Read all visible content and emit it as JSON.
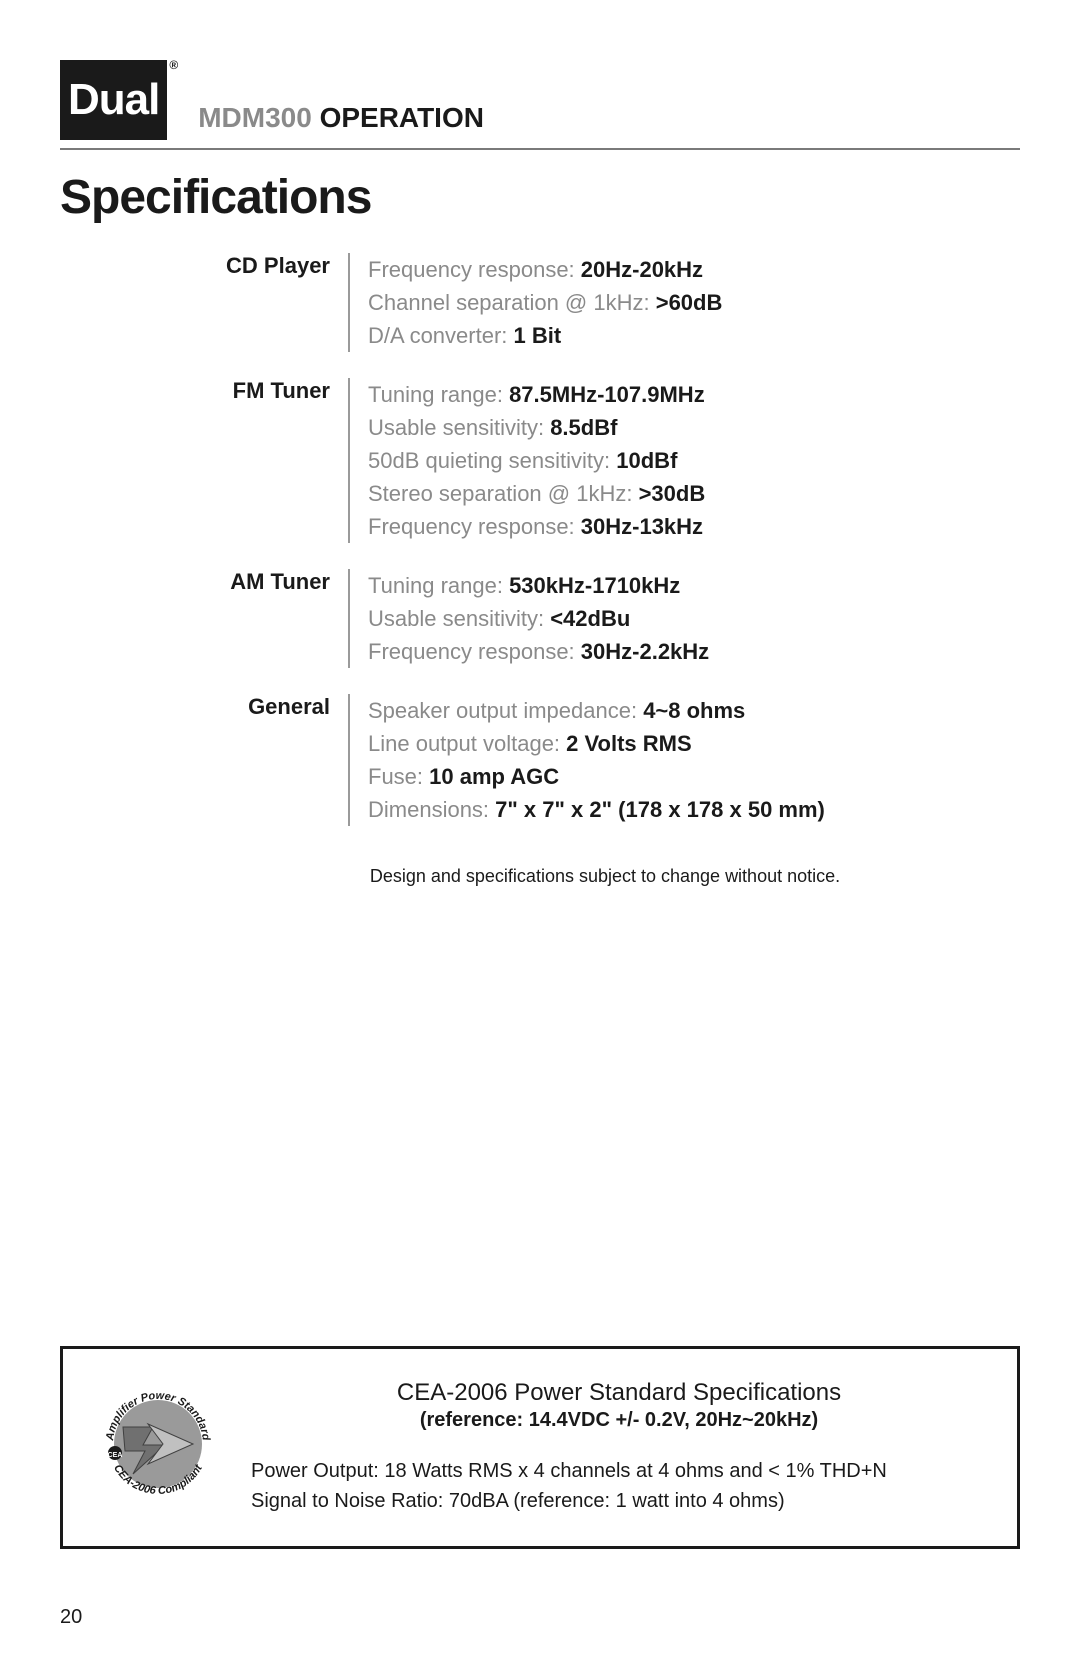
{
  "brand": {
    "logo_text": "Dual",
    "reg": "®"
  },
  "header": {
    "model": "MDM300",
    "word": "OPERATION"
  },
  "title": "Specifications",
  "sections": [
    {
      "category": "CD Player",
      "items": [
        {
          "label": "Frequency response:",
          "value": "20Hz-20kHz"
        },
        {
          "label": "Channel separation @ 1kHz:",
          "value": ">60dB"
        },
        {
          "label": "D/A converter:",
          "value": "1 Bit"
        }
      ]
    },
    {
      "category": "FM Tuner",
      "items": [
        {
          "label": "Tuning range:",
          "value": "87.5MHz-107.9MHz"
        },
        {
          "label": "Usable sensitivity:",
          "value": "8.5dBf"
        },
        {
          "label": "50dB quieting sensitivity:",
          "value": "10dBf"
        },
        {
          "label": "Stereo separation @ 1kHz:",
          "value": ">30dB"
        },
        {
          "label": "Frequency response:",
          "value": "30Hz-13kHz"
        }
      ]
    },
    {
      "category": "AM Tuner",
      "items": [
        {
          "label": "Tuning range:",
          "value": "530kHz-1710kHz"
        },
        {
          "label": "Usable sensitivity:",
          "value": "<42dBu"
        },
        {
          "label": "Frequency response:",
          "value": "30Hz-2.2kHz"
        }
      ]
    },
    {
      "category": "General",
      "items": [
        {
          "label": "Speaker output impedance:",
          "value": "4~8 ohms"
        },
        {
          "label": "Line output voltage:",
          "value": "2 Volts RMS"
        },
        {
          "label": "Fuse:",
          "value": "10 amp AGC"
        },
        {
          "label": "Dimensions:",
          "value": "7\" x 7\" x 2\" (178 x 178 x 50 mm)"
        }
      ]
    }
  ],
  "disclaimer": "Design and specifications subject to change without notice.",
  "cea": {
    "badge_top": "Amplifier Power Standard",
    "badge_mid": "CEA",
    "badge_bottom": "CEA-2006 Compliant",
    "title": "CEA-2006 Power Standard Specifications",
    "reference": "(reference: 14.4VDC +/- 0.2V, 20Hz~20kHz)",
    "lines": [
      "Power Output: 18 Watts RMS x 4 channels at 4 ohms and < 1% THD+N",
      "Signal to Noise Ratio: 70dBA (reference: 1 watt into 4 ohms)"
    ]
  },
  "page_number": "20",
  "colors": {
    "text_dark": "#1a1a1a",
    "text_muted": "#8a8a8a",
    "divider": "#9a9a9a",
    "background": "#ffffff"
  }
}
